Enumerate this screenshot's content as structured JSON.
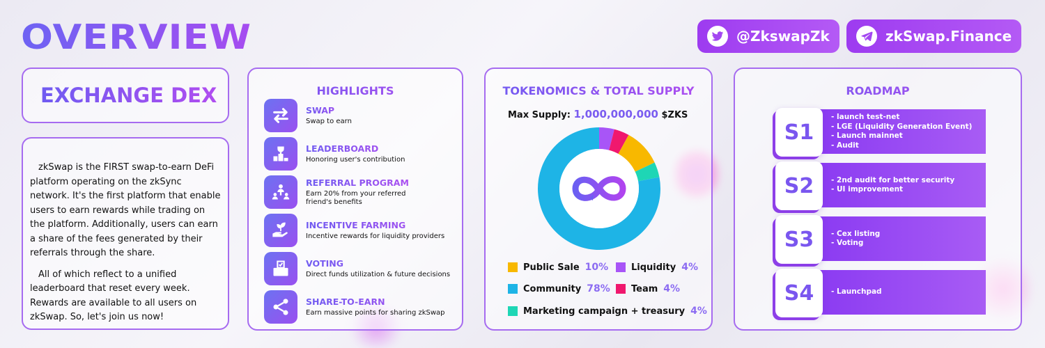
{
  "header": {
    "title": "OVERVIEW",
    "twitter_label": "@ZkswapZk",
    "telegram_label": "zkSwap.Finance"
  },
  "exchange": {
    "title": "EXCHANGE DEX",
    "paragraph1": "zkSwap is the FIRST swap-to-earn DeFi platform operating on the zkSync network. It's the first platform that enable users to earn rewards while trading on the platform. Additionally, users can earn a share of the fees generated by their referrals through the share.",
    "paragraph2": "All of which reflect to a unified leaderboard that reset every week. Rewards are available to all users on zkSwap. So, let's join us now!"
  },
  "highlights": {
    "title": "HIGHLIGHTS",
    "items": [
      {
        "name": "SWAP",
        "desc": "Swap to earn",
        "icon": "swap-arrows-icon"
      },
      {
        "name": "LEADERBOARD",
        "desc": "Honoring user's contribution",
        "icon": "trophy-podium-icon"
      },
      {
        "name": "REFERRAL PROGRAM",
        "desc": "Earn 20% from your referred friend's benefits",
        "icon": "referral-network-icon"
      },
      {
        "name": "INCENTIVE FARMING",
        "desc": "Incentive rewards for liquidity providers",
        "icon": "plant-hand-icon"
      },
      {
        "name": "VOTING",
        "desc": "Direct funds utilization & future decisions",
        "icon": "ballot-box-icon"
      },
      {
        "name": "SHARE-TO-EARN",
        "desc": "Earn massive points for sharing zkSwap",
        "icon": "share-icon"
      }
    ]
  },
  "tokenomics": {
    "title": "TOKENOMICS & TOTAL SUPPLY",
    "max_supply_label": "Max Supply:",
    "max_supply_value": "1,000,000,000",
    "max_supply_unit": "$ZKS",
    "legend": [
      {
        "label": "Public Sale",
        "pct": "10%",
        "color": "#f8b800"
      },
      {
        "label": "Liquidity",
        "pct": "4%",
        "color": "#a855f7"
      },
      {
        "label": "Community",
        "pct": "78%",
        "color": "#1eb4e6"
      },
      {
        "label": "Team",
        "pct": "4%",
        "color": "#f0186e"
      },
      {
        "label": "Marketing campaign + treasury",
        "pct": "4%",
        "color": "#1ed6b5"
      }
    ]
  },
  "chart_data": {
    "type": "pie",
    "categories": [
      "Liquidity",
      "Team",
      "Public Sale",
      "Marketing campaign + treasury",
      "Community"
    ],
    "values": [
      4,
      4,
      10,
      4,
      78
    ],
    "colors": [
      "#a855f7",
      "#f0186e",
      "#f8b800",
      "#1ed6b5",
      "#1eb4e6"
    ],
    "donut": true,
    "title": "TOKENOMICS & TOTAL SUPPLY"
  },
  "roadmap": {
    "title": "ROADMAP",
    "stages": [
      {
        "label": "S1",
        "items": [
          "- launch test-net",
          "- LGE (Liquidity Generation Event)",
          "- Launch mainnet",
          "- Audit"
        ]
      },
      {
        "label": "S2",
        "items": [
          "- 2nd audit for better security",
          "- UI improvement"
        ]
      },
      {
        "label": "S3",
        "items": [
          "- Cex listing",
          "- Voting"
        ]
      },
      {
        "label": "S4",
        "items": [
          "- Launchpad"
        ]
      }
    ]
  }
}
